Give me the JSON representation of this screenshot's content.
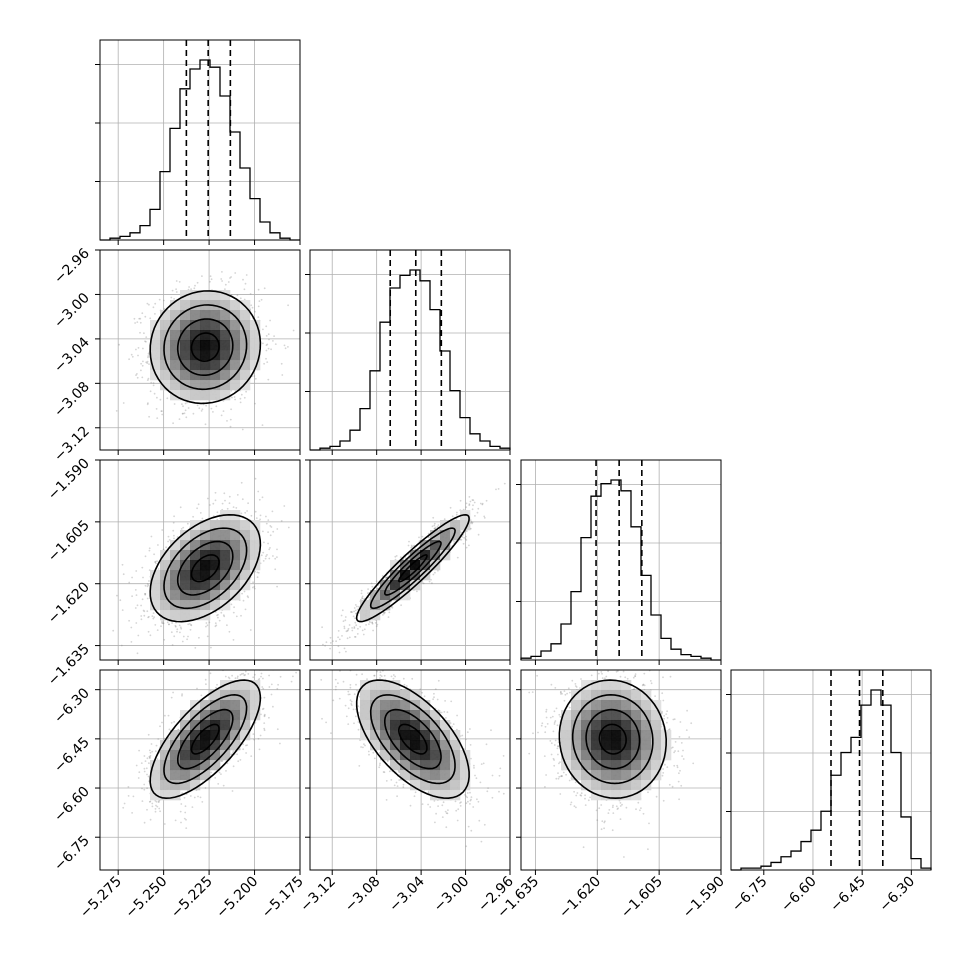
{
  "chart_data": {
    "type": "corner",
    "parameters": [
      {
        "id": "p0",
        "range": [
          -5.285,
          -5.175
        ],
        "ticks": [
          "-5.275",
          "-5.250",
          "-5.225",
          "-5.200",
          "-5.175"
        ],
        "tick_values": [
          -5.275,
          -5.25,
          -5.225,
          -5.2,
          -5.175
        ],
        "quantiles": [
          -5.2375,
          -5.2255,
          -5.2133
        ],
        "hist": [
          0,
          1,
          2,
          4,
          8,
          17,
          38,
          62,
          84,
          95,
          100,
          96,
          80,
          60,
          40,
          23,
          10,
          4,
          1,
          0
        ]
      },
      {
        "id": "p1",
        "range": [
          -3.14,
          -2.96
        ],
        "ticks": [
          "-3.12",
          "-3.08",
          "-3.04",
          "-3.00",
          "-2.96"
        ],
        "y_ticks": [
          "-2.96",
          "-3.00",
          "-3.04",
          "-3.08",
          "-3.12"
        ],
        "tick_values": [
          -3.12,
          -3.08,
          -3.04,
          -3.0,
          -2.96
        ],
        "quantiles": [
          -3.0678,
          -3.0448,
          -3.0218
        ],
        "hist": [
          0,
          1,
          2,
          5,
          11,
          23,
          44,
          71,
          90,
          97,
          100,
          94,
          78,
          55,
          33,
          18,
          9,
          5,
          2,
          1
        ]
      },
      {
        "id": "p2",
        "range": [
          -1.6385,
          -1.59
        ],
        "ticks": [
          "-1.635",
          "-1.620",
          "-1.605",
          "-1.590"
        ],
        "y_ticks": [
          "-1.590",
          "-1.605",
          "-1.620",
          "-1.635"
        ],
        "tick_values": [
          -1.635,
          -1.62,
          -1.605,
          -1.59
        ],
        "quantiles": [
          -1.6203,
          -1.6147,
          -1.6092
        ],
        "hist": [
          1,
          2,
          5,
          9,
          20,
          38,
          68,
          91,
          98,
          100,
          94,
          74,
          47,
          25,
          12,
          6,
          3,
          2,
          1,
          0
        ]
      },
      {
        "id": "p3",
        "range": [
          -6.85,
          -6.24
        ],
        "ticks": [
          "-6.75",
          "-6.60",
          "-6.45",
          "-6.30"
        ],
        "y_ticks": [
          "-6.30",
          "-6.45",
          "-6.60",
          "-6.75"
        ],
        "tick_values": [
          -6.75,
          -6.6,
          -6.45,
          -6.3
        ],
        "quantiles": [
          -6.545,
          -6.458,
          -6.387
        ],
        "hist": [
          0,
          1,
          1,
          2,
          4,
          7,
          10,
          15,
          21,
          31,
          50,
          62,
          70,
          87,
          95,
          87,
          62,
          28,
          6,
          1
        ]
      }
    ],
    "pairs": [
      {
        "row": 1,
        "col": 0,
        "correlation": 0.05
      },
      {
        "row": 2,
        "col": 0,
        "correlation": 0.45
      },
      {
        "row": 2,
        "col": 1,
        "correlation": 0.93
      },
      {
        "row": 3,
        "col": 0,
        "correlation": 0.7
      },
      {
        "row": 3,
        "col": 1,
        "correlation": -0.6
      },
      {
        "row": 3,
        "col": 2,
        "correlation": -0.05
      }
    ],
    "contour_levels_sigma": [
      0.5,
      1.0,
      1.5,
      2.0
    ],
    "grid": true
  }
}
